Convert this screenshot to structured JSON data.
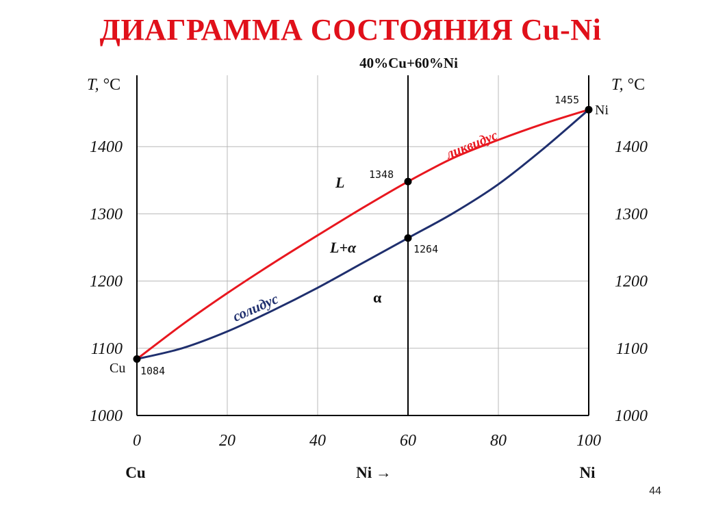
{
  "title": "ДИАГРАММА СОСТОЯНИЯ Cu-Ni",
  "page_number": "44",
  "composition_label": "40%Cu+60%Ni",
  "colors": {
    "title": "#e0101a",
    "liquidus": "#e8171f",
    "solidus": "#1f2f6e",
    "grid": "#b8b8b8",
    "frame": "#000000"
  },
  "axes": {
    "y_label_T": "T,",
    "y_label_unit": " °C",
    "x_left_element": "Cu",
    "x_center_label": "Ni →",
    "x_right_element": "Ni",
    "x_ticks": [
      "0",
      "20",
      "40",
      "60",
      "80",
      "100"
    ],
    "y_ticks": [
      "1000",
      "1100",
      "1200",
      "1300",
      "1400"
    ]
  },
  "regions": {
    "liquid": "L",
    "two_phase": "L+α",
    "solid": "α"
  },
  "curve_labels": {
    "liquidus": "ликвидус",
    "solidus": "солидус"
  },
  "point_labels": {
    "cu_element": "Cu",
    "ni_element": "Ni",
    "t_cu": "1084",
    "t_ni": "1455",
    "t_liquidus_60": "1348",
    "t_solidus_60": "1264"
  },
  "chart_data": {
    "type": "line",
    "title": "ДИАГРАММА СОСТОЯНИЯ Cu-Ni",
    "xlabel": "Ni →",
    "ylabel": "T, °C",
    "xlim": [
      0,
      100
    ],
    "ylim": [
      1000,
      1500
    ],
    "grid": true,
    "x_ticks": [
      0,
      20,
      40,
      60,
      80,
      100
    ],
    "y_ticks": [
      1000,
      1100,
      1200,
      1300,
      1400
    ],
    "series": [
      {
        "name": "ликвидус",
        "x": [
          0,
          10,
          20,
          30,
          40,
          50,
          60,
          70,
          80,
          90,
          100
        ],
        "y": [
          1084,
          1135,
          1182,
          1226,
          1268,
          1309,
          1348,
          1383,
          1410,
          1434,
          1455
        ]
      },
      {
        "name": "солидус",
        "x": [
          0,
          10,
          20,
          30,
          40,
          50,
          60,
          70,
          80,
          90,
          100
        ],
        "y": [
          1084,
          1100,
          1125,
          1156,
          1190,
          1227,
          1264,
          1301,
          1344,
          1397,
          1455
        ]
      }
    ],
    "points": [
      {
        "x": 0,
        "y": 1084,
        "label": "1084"
      },
      {
        "x": 100,
        "y": 1455,
        "label": "1455"
      },
      {
        "x": 60,
        "y": 1348,
        "label": "1348"
      },
      {
        "x": 60,
        "y": 1264,
        "label": "1264"
      }
    ],
    "vertical_line": {
      "x": 60,
      "label": "40%Cu+60%Ni"
    }
  }
}
